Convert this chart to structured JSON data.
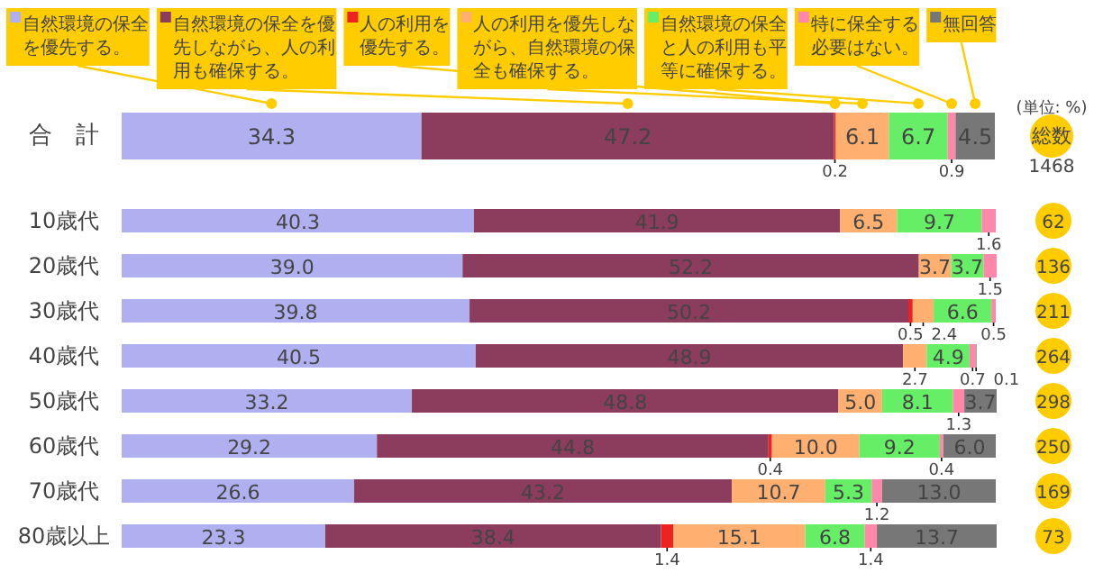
{
  "chart_data": {
    "type": "bar",
    "orientation": "horizontal",
    "stacked": true,
    "legend": "top",
    "categories": [
      "合　計",
      "10歳代",
      "20歳代",
      "30歳代",
      "40歳代",
      "50歳代",
      "60歳代",
      "70歳代",
      "80歳以上"
    ],
    "series": [
      {
        "name": "自然環境の保全を優先する。",
        "color": "#b0b0f0",
        "values": [
          34.3,
          40.3,
          39.0,
          39.8,
          40.5,
          33.2,
          29.2,
          26.6,
          23.3
        ],
        "value_labels": [
          "34.3",
          "40.3",
          "39.0",
          "39.8",
          "40.5",
          "33.2",
          "29.2",
          "26.6",
          "23.3"
        ]
      },
      {
        "name": "自然環境の保全を優先しながら、人の利用も確保する。",
        "color": "#8c3c5c",
        "values": [
          47.2,
          41.9,
          52.2,
          50.2,
          48.9,
          48.8,
          44.8,
          43.2,
          38.4
        ],
        "value_labels": [
          "47.2",
          "41.9",
          "52.2",
          "50.2",
          "48.9",
          "48.8",
          "44.8",
          "43.2",
          "38.4"
        ]
      },
      {
        "name": "人の利用を優先する。",
        "color": "#ee2222",
        "values": [
          0.2,
          null,
          null,
          0.5,
          null,
          null,
          0.4,
          null,
          1.4
        ],
        "value_labels": [
          "0.2",
          null,
          null,
          "0.5",
          null,
          null,
          "0.4",
          null,
          "1.4"
        ]
      },
      {
        "name": "人の利用を優先しながら、自然環境の保全も確保する。",
        "color": "#ffb070",
        "values": [
          6.1,
          6.5,
          3.7,
          2.4,
          2.7,
          5.0,
          10.0,
          10.7,
          15.1
        ],
        "value_labels": [
          "6.1",
          "6.5",
          "3.7",
          "2.4",
          "2.7",
          "5.0",
          "10.0",
          "10.7",
          "15.1"
        ]
      },
      {
        "name": "自然環境の保全と人の利用も平等に確保する。",
        "color": "#66ee66",
        "values": [
          6.7,
          9.7,
          3.7,
          6.6,
          4.9,
          8.1,
          9.2,
          5.3,
          6.8
        ],
        "value_labels": [
          "6.7",
          "9.7",
          "3.7",
          "6.6",
          "4.9",
          "8.1",
          "9.2",
          "5.3",
          "6.8"
        ]
      },
      {
        "name": "特に保全する必要はない。",
        "color": "#ff88aa",
        "values": [
          0.9,
          1.6,
          1.5,
          0.5,
          0.7,
          1.3,
          0.4,
          1.2,
          1.4
        ],
        "value_labels": [
          "0.9",
          "1.6",
          "1.5",
          "0.5",
          "0.7",
          "1.3",
          "0.4",
          "1.2",
          "1.4"
        ]
      },
      {
        "name": "無回答",
        "color": "#777777",
        "values": [
          4.5,
          null,
          null,
          null,
          0.1,
          3.7,
          6.0,
          13.0,
          13.7
        ],
        "value_labels": [
          "4.5",
          null,
          null,
          null,
          "0.1",
          "3.7",
          "6.0",
          "13.0",
          "13.7"
        ]
      }
    ],
    "annotations": [
      "(単位: %)",
      "総数",
      "1468",
      "62",
      "136",
      "211",
      "264",
      "298",
      "250",
      "169",
      "73"
    ]
  }
}
